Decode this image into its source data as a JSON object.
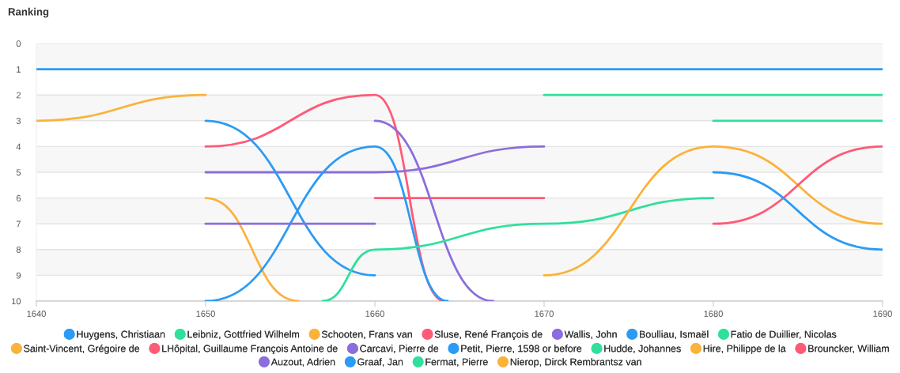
{
  "chart_data": {
    "type": "line",
    "title": "Ranking",
    "x": [
      1640,
      1650,
      1660,
      1670,
      1680,
      1690
    ],
    "xlim": [
      1640,
      1690
    ],
    "xticks": [
      1640,
      1650,
      1660,
      1670,
      1680,
      1690
    ],
    "ylim": [
      10,
      0
    ],
    "yticks": [
      0,
      1,
      2,
      3,
      4,
      5,
      6,
      7,
      8,
      9,
      10
    ],
    "grid": "y",
    "legend": "bottom",
    "series": [
      {
        "name": "Huygens, Christiaan",
        "color": "#2b9bf4",
        "values": [
          1,
          1,
          1,
          1,
          1,
          1
        ]
      },
      {
        "name": "Leibniz, Gottfried Wilhelm",
        "color": "#2fe09c",
        "values": [
          null,
          null,
          null,
          2,
          2,
          2
        ]
      },
      {
        "name": "Schooten, Frans van",
        "color": "#fbb23a",
        "x": [
          1650,
          1655.5
        ],
        "values": [
          6,
          10
        ]
      },
      {
        "name": "Sluse, René François de",
        "color": "#ff5a76",
        "x": [
          1650,
          1660,
          1664.1
        ],
        "values": [
          4,
          2,
          10
        ]
      },
      {
        "name": "Wallis, John",
        "color": "#8b6ddd",
        "values": [
          null,
          5,
          5,
          4,
          null,
          null
        ]
      },
      {
        "name": "Boulliau, Ismaël",
        "color": "#2b9bf4",
        "values": [
          null,
          3,
          9,
          null,
          null,
          null
        ]
      },
      {
        "name": "Fatio de Duillier, Nicolas",
        "color": "#2fe09c",
        "values": [
          null,
          null,
          null,
          null,
          3,
          3
        ]
      },
      {
        "name": "Saint-Vincent, Grégoire de",
        "color": "#fbb23a",
        "values": [
          3,
          2,
          null,
          null,
          null,
          null
        ]
      },
      {
        "name": "LHôpital, Guillaume François Antoine de",
        "color": "#ff5a76",
        "values": [
          null,
          null,
          6,
          6,
          null,
          null
        ]
      },
      {
        "name": "Carcavi, Pierre de",
        "color": "#8b6ddd",
        "x": [
          1660,
          1667
        ],
        "values": [
          3,
          10
        ]
      },
      {
        "name": "Petit, Pierre, 1598 or before",
        "color": "#2b9bf4",
        "x": [
          1650,
          1660,
          1664.3
        ],
        "values": [
          10,
          4,
          10
        ]
      },
      {
        "name": "Hudde, Johannes",
        "color": "#2fe09c",
        "x": [
          1656.9,
          1660,
          1670,
          1680
        ],
        "values": [
          10,
          8,
          7,
          6
        ]
      },
      {
        "name": "Hire, Philippe de la",
        "color": "#fbb23a",
        "values": [
          null,
          null,
          null,
          9,
          4,
          7
        ]
      },
      {
        "name": "Brouncker, William",
        "color": "#ff5a76",
        "values": [
          null,
          null,
          null,
          null,
          7,
          4
        ]
      },
      {
        "name": "Auzout, Adrien",
        "color": "#8b6ddd",
        "values": [
          null,
          7,
          7,
          null,
          null,
          null
        ]
      },
      {
        "name": "Graaf, Jan",
        "color": "#2b9bf4",
        "values": [
          null,
          null,
          null,
          null,
          5,
          8
        ]
      },
      {
        "name": "Fermat, Pierre",
        "color": "#2fe09c",
        "values": [
          null,
          null,
          null,
          null,
          null,
          null
        ]
      },
      {
        "name": "Nierop, Dirck Rembrantsz van",
        "color": "#fbb23a",
        "values": [
          null,
          null,
          null,
          null,
          null,
          null
        ]
      }
    ]
  }
}
